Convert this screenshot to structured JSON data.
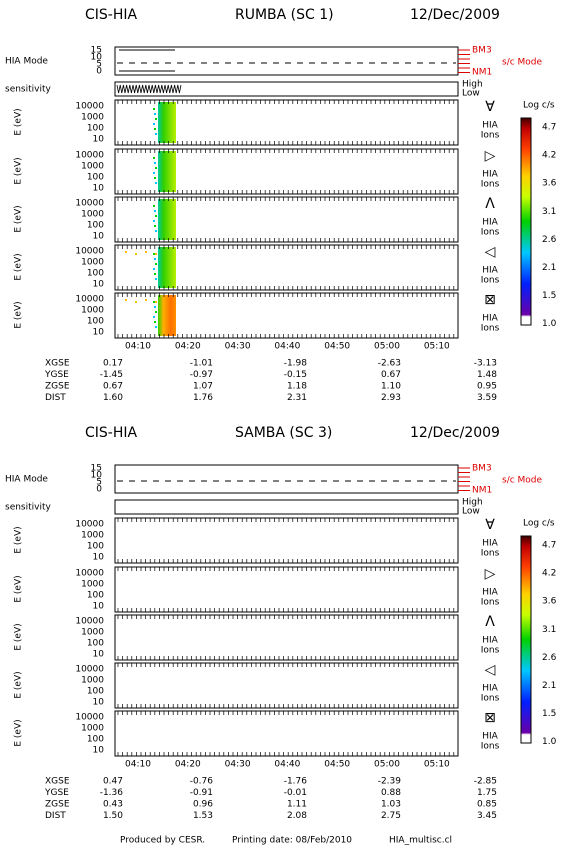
{
  "plots": [
    {
      "instrument": "CIS-HIA",
      "spacecraft": "RUMBA (SC 1)",
      "date": "12/Dec/2009",
      "mode_label": "HIA Mode",
      "mode_ticks": [
        "15",
        "10",
        "5",
        "0"
      ],
      "mode_high": "BM3",
      "mode_low": "NM1",
      "sc_mode": "s/c Mode",
      "sensitivity_label": "sensitivity",
      "sens_high": "High",
      "sens_low": "Low",
      "panels": [
        {
          "axis_label": "E (eV)",
          "energy_ticks": [
            "10000",
            "1000",
            "100",
            "10"
          ],
          "symbol": "∀",
          "species": [
            "HIA",
            "Ions"
          ]
        },
        {
          "axis_label": "E (eV)",
          "energy_ticks": [
            "10000",
            "1000",
            "100",
            "10"
          ],
          "symbol": "▷",
          "species": [
            "HIA",
            "Ions"
          ]
        },
        {
          "axis_label": "E (eV)",
          "energy_ticks": [
            "10000",
            "1000",
            "100",
            "10"
          ],
          "symbol": "Λ",
          "species": [
            "HIA",
            "Ions"
          ]
        },
        {
          "axis_label": "E (eV)",
          "energy_ticks": [
            "10000",
            "1000",
            "100",
            "10"
          ],
          "symbol": "◁",
          "species": [
            "HIA",
            "Ions"
          ]
        },
        {
          "axis_label": "E (eV)",
          "energy_ticks": [
            "10000",
            "1000",
            "100",
            "10"
          ],
          "symbol": "⊠",
          "species": [
            "HIA",
            "Ions"
          ]
        }
      ],
      "colorbar": {
        "title": "Log c/s",
        "ticks": [
          "4.7",
          "4.2",
          "3.6",
          "3.1",
          "2.6",
          "2.1",
          "1.5",
          "1.0"
        ]
      },
      "time_ticks": [
        "04:10",
        "04:20",
        "04:30",
        "04:40",
        "04:50",
        "05:00",
        "05:10"
      ],
      "orbit": [
        {
          "label": "XGSE",
          "values": [
            "0.17",
            "-1.01",
            "-1.98",
            "-2.63",
            "-3.13"
          ]
        },
        {
          "label": "YGSE",
          "values": [
            "-1.45",
            "-0.97",
            "-0.15",
            "0.67",
            "1.48"
          ]
        },
        {
          "label": "ZGSE",
          "values": [
            "0.67",
            "1.07",
            "1.18",
            "1.10",
            "0.95"
          ]
        },
        {
          "label": "DIST",
          "values": [
            "1.60",
            "1.76",
            "2.31",
            "2.93",
            "3.59"
          ]
        }
      ]
    },
    {
      "instrument": "CIS-HIA",
      "spacecraft": "SAMBA (SC 3)",
      "date": "12/Dec/2009",
      "mode_label": "HIA Mode",
      "mode_ticks": [
        "15",
        "10",
        "5",
        "0"
      ],
      "mode_high": "BM3",
      "mode_low": "NM1",
      "sc_mode": "s/c Mode",
      "sensitivity_label": "sensitivity",
      "sens_high": "High",
      "sens_low": "Low",
      "panels": [
        {
          "axis_label": "E (eV)",
          "energy_ticks": [
            "10000",
            "1000",
            "100",
            "10"
          ],
          "symbol": "∀",
          "species": [
            "HIA",
            "Ions"
          ]
        },
        {
          "axis_label": "E (eV)",
          "energy_ticks": [
            "10000",
            "1000",
            "100",
            "10"
          ],
          "symbol": "▷",
          "species": [
            "HIA",
            "Ions"
          ]
        },
        {
          "axis_label": "E (eV)",
          "energy_ticks": [
            "10000",
            "1000",
            "100",
            "10"
          ],
          "symbol": "Λ",
          "species": [
            "HIA",
            "Ions"
          ]
        },
        {
          "axis_label": "E (eV)",
          "energy_ticks": [
            "10000",
            "1000",
            "100",
            "10"
          ],
          "symbol": "◁",
          "species": [
            "HIA",
            "Ions"
          ]
        },
        {
          "axis_label": "E (eV)",
          "energy_ticks": [
            "10000",
            "1000",
            "100",
            "10"
          ],
          "symbol": "⊠",
          "species": [
            "HIA",
            "Ions"
          ]
        }
      ],
      "colorbar": {
        "title": "Log c/s",
        "ticks": [
          "4.7",
          "4.2",
          "3.6",
          "3.1",
          "2.6",
          "2.1",
          "1.5",
          "1.0"
        ]
      },
      "time_ticks": [
        "04:10",
        "04:20",
        "04:30",
        "04:40",
        "04:50",
        "05:00",
        "05:10"
      ],
      "orbit": [
        {
          "label": "XGSE",
          "values": [
            "0.47",
            "-0.76",
            "-1.76",
            "-2.39",
            "-2.85"
          ]
        },
        {
          "label": "YGSE",
          "values": [
            "-1.36",
            "-0.91",
            "-0.01",
            "0.88",
            "1.75"
          ]
        },
        {
          "label": "ZGSE",
          "values": [
            "0.43",
            "0.96",
            "1.11",
            "1.03",
            "0.85"
          ]
        },
        {
          "label": "DIST",
          "values": [
            "1.50",
            "1.53",
            "2.08",
            "2.75",
            "3.45"
          ]
        }
      ]
    }
  ],
  "footer": [
    "Produced by CESR.",
    "Printing date: 08/Feb/2010",
    "HIA_multisc.cl"
  ]
}
